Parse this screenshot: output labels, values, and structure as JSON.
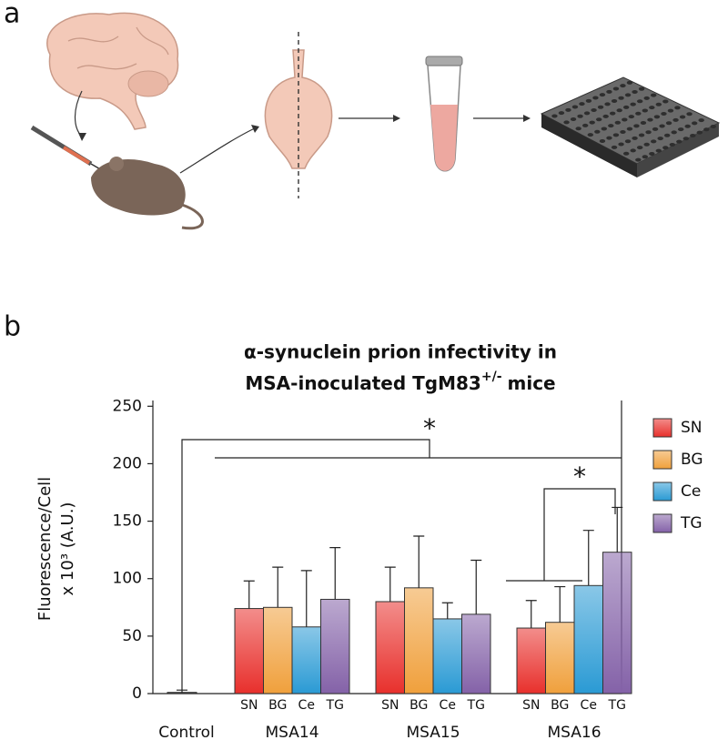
{
  "panel_labels": [
    "a",
    "b"
  ],
  "chart_data": {
    "type": "bar",
    "title": "α-synuclein prion infectivity in",
    "title2": "MSA-inoculated TgM83",
    "title2_sup": "+/-",
    "title2_end": "mice",
    "ylabel": [
      "Fluorescence/Cell",
      "x 10³ (A.U.)"
    ],
    "control": {
      "label": "Control",
      "value": 1,
      "error": 2
    },
    "categories": [
      "MSA14",
      "MSA15",
      "MSA16"
    ],
    "series": [
      {
        "name": "SN",
        "color": "#e8302c",
        "values": [
          74,
          80,
          57
        ],
        "errors": [
          24,
          30,
          24
        ]
      },
      {
        "name": "BG",
        "color": "#f0a03c",
        "values": [
          75,
          92,
          62
        ],
        "errors": [
          35,
          45,
          31
        ]
      },
      {
        "name": "Ce",
        "color": "#2a9ad4",
        "values": [
          58,
          65,
          94
        ],
        "errors": [
          49,
          14,
          48
        ]
      },
      {
        "name": "TG",
        "color": "#8462a8",
        "values": [
          82,
          69,
          123
        ],
        "errors": [
          45,
          47,
          39
        ]
      }
    ],
    "ylim": [
      0,
      255
    ],
    "yticks": [
      0,
      50,
      100,
      150,
      200,
      250
    ],
    "annotations": [
      "*",
      "*"
    ],
    "legend": "right"
  }
}
